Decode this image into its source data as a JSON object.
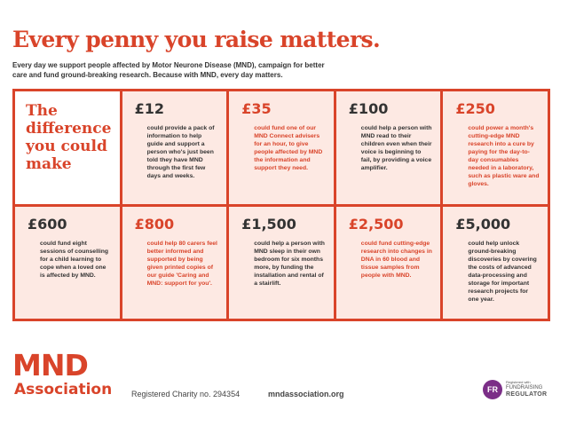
{
  "headline": "Every penny you raise matters.",
  "intro": "Every day we support people affected by Motor Neurone Disease (MND), campaign for better care and fund ground-breaking research. Because with MND, every day matters.",
  "grid": {
    "heading": "The difference you could make",
    "cards": [
      {
        "amount": "£12",
        "text": "could provide a pack of information to help guide and support a person who's just been told they have MND through the first few days and weeks.",
        "accent": false
      },
      {
        "amount": "£35",
        "text": "could fund one of our MND Connect advisers for an hour, to give people affected by MND the information and support they need.",
        "accent": true
      },
      {
        "amount": "£100",
        "text": "could help a person with MND read to their children even when their voice is beginning to fail, by providing a voice amplifier.",
        "accent": false
      },
      {
        "amount": "£250",
        "text": "could power a month's cutting-edge MND research into a cure by paying for the day-to-day consumables needed in a laboratory, such as plastic ware and gloves.",
        "accent": true
      },
      {
        "amount": "£600",
        "text": "could fund eight sessions of counselling for a child learning to cope when a loved one is affected by MND.",
        "accent": false
      },
      {
        "amount": "£800",
        "text": "could help 80 carers feel better informed and supported by being given printed copies of our guide 'Caring and MND: support for you'.",
        "accent": true
      },
      {
        "amount": "£1,500",
        "text": "could help a person with MND sleep in their own bedroom for six months more, by funding the installation and rental of a stairlift.",
        "accent": false
      },
      {
        "amount": "£2,500",
        "text": "could fund cutting-edge research into changes in DNA in 60 blood and tissue samples from people with MND.",
        "accent": true
      },
      {
        "amount": "£5,000",
        "text": "could help unlock ground-breaking discoveries by covering the costs of advanced data-processing and storage for important research projects for one year.",
        "accent": false
      }
    ]
  },
  "footer": {
    "logo_letters": "MND",
    "logo_word": "Association",
    "charity": "Registered Charity no. 294354",
    "website": "mndassociation.org",
    "regulator": {
      "badge": "FR",
      "small": "Registered with",
      "line1": "FUNDRAISING",
      "line2": "REGULATOR"
    }
  },
  "colors": {
    "accent": "#d9442a",
    "card_bg": "#fde9e3",
    "text": "#333333",
    "regulator": "#7b2e87"
  }
}
